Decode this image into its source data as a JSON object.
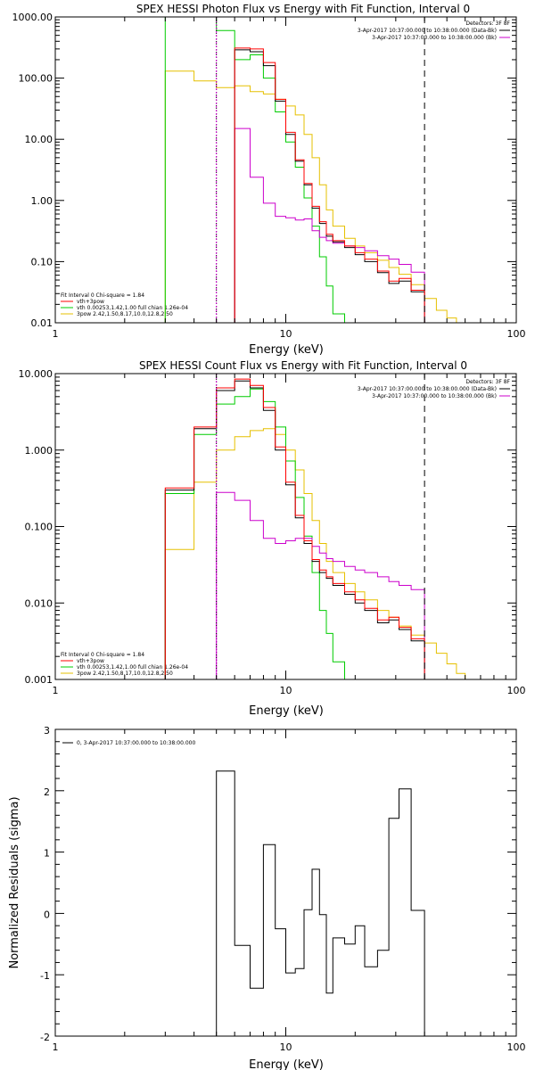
{
  "chart_data": [
    {
      "type": "line",
      "title": "SPEX HESSI Photon Flux vs Energy with Fit Function, Interval 0",
      "xlabel": "Energy (keV)",
      "ylabel": "",
      "xscale": "log",
      "yscale": "log",
      "xlim": [
        1,
        100
      ],
      "ylim": [
        0.01,
        1000
      ],
      "xticks": [
        "1",
        "10",
        "100"
      ],
      "yticks": [
        "1000.00",
        "100.00",
        "10.00",
        "1.00",
        "0.10",
        "0.01"
      ],
      "top_right_text": [
        "Detectors: 3F 8F",
        "3-Apr-2017 10:37:00.000 to 10:38:00.000 (Data-Bk)",
        "3-Apr-2017 10:37:00.000 to 10:38:00.000 (Bk)"
      ],
      "top_right_colors": [
        "#000000",
        "#cc00cc"
      ],
      "legend_position": "bottom-left",
      "fit_text": [
        "Fit Interval 0   Chi-square = 1.84",
        "vth+3pow",
        "vth 0.00253,1.42,1.00   full chian 1.26e-04",
        "3pow 2.42,1.50,8.17,10.0,12.8,2.50"
      ],
      "fit_colors": [
        "#ff0000",
        "#00cc00",
        "#e6c000"
      ],
      "edges": [
        3.0,
        4.0,
        5.0,
        6.0,
        7.0,
        8.0,
        9.0,
        10.0,
        11.0,
        12.0,
        13.0,
        14.0,
        15.0,
        16.0,
        18.0,
        20.0,
        22.0,
        25.0,
        28.0,
        31.0,
        35.0,
        40.0,
        45.0,
        50.0,
        55.0
      ],
      "vlines": [
        {
          "x": 5.0,
          "color": "#000000",
          "dash": "1,2"
        },
        {
          "x": 5.0,
          "color": "#cc00cc",
          "dash": "2,2"
        },
        {
          "x": 40.0,
          "color": "#000000",
          "dash": "7,5"
        }
      ],
      "series": [
        {
          "color": "#e6c000",
          "values": [
            130,
            90,
            70,
            75,
            60,
            55,
            45,
            35,
            25,
            12,
            5,
            1.8,
            0.7,
            0.38,
            0.24,
            0.18,
            0.14,
            0.105,
            0.08,
            0.062,
            0.042,
            0.025,
            0.016,
            0.012,
            null
          ]
        },
        {
          "color": "#00cc00",
          "values": [
            1000,
            1000,
            600,
            200,
            240,
            100,
            28,
            9,
            3.5,
            1.1,
            0.38,
            0.12,
            0.04,
            0.014,
            null,
            null,
            null,
            null,
            null,
            null,
            null,
            null,
            null,
            null,
            null
          ]
        },
        {
          "color": "#cc00cc",
          "values": [
            null,
            null,
            null,
            15,
            2.4,
            0.9,
            0.55,
            0.52,
            0.48,
            0.5,
            0.32,
            0.25,
            0.22,
            0.2,
            0.18,
            0.17,
            0.15,
            0.125,
            0.11,
            0.09,
            0.067,
            null,
            null,
            null,
            null
          ]
        },
        {
          "color": "#000000",
          "values": [
            null,
            null,
            null,
            290,
            270,
            160,
            42,
            12,
            4.4,
            1.8,
            0.75,
            0.42,
            0.26,
            0.21,
            0.17,
            0.13,
            0.1,
            0.066,
            0.044,
            0.048,
            0.032,
            null,
            null,
            null,
            null
          ]
        },
        {
          "color": "#ff0000",
          "values": [
            null,
            null,
            null,
            310,
            300,
            180,
            45,
            13,
            4.6,
            1.9,
            0.8,
            0.45,
            0.28,
            0.22,
            0.18,
            0.14,
            0.11,
            0.07,
            0.048,
            0.053,
            0.034,
            null,
            null,
            null,
            null
          ]
        }
      ]
    },
    {
      "type": "line",
      "title": "SPEX HESSI Count Flux vs Energy with Fit Function, Interval 0",
      "xlabel": "Energy (keV)",
      "ylabel": "",
      "xscale": "log",
      "yscale": "log",
      "xlim": [
        1,
        100
      ],
      "ylim": [
        0.001,
        10
      ],
      "xticks": [
        "1",
        "10",
        "100"
      ],
      "yticks": [
        "10.000",
        "1.000",
        "0.100",
        "0.010",
        "0.001"
      ],
      "top_right_text": [
        "Detectors: 3F 8F",
        "3-Apr-2017 10:37:00.000 to 10:38:00.000 (Data-Bk)",
        "3-Apr-2017 10:37:00.000 to 10:38:00.000 (Bk)"
      ],
      "top_right_colors": [
        "#000000",
        "#cc00cc"
      ],
      "legend_position": "bottom-left",
      "fit_text": [
        "Fit Interval 0   Chi-square = 1.84",
        "vth+3pow",
        "vth 0.00253,1.42,1.00   full chian 1.26e-04",
        "3pow 2.42,1.50,8.17,10.0,12.8,2.50"
      ],
      "fit_colors": [
        "#ff0000",
        "#00cc00",
        "#e6c000"
      ],
      "edges": [
        3.0,
        4.0,
        5.0,
        6.0,
        7.0,
        8.0,
        9.0,
        10.0,
        11.0,
        12.0,
        13.0,
        14.0,
        15.0,
        16.0,
        18.0,
        20.0,
        22.0,
        25.0,
        28.0,
        31.0,
        35.0,
        40.0,
        45.0,
        50.0,
        55.0,
        60.0,
        65.0
      ],
      "vlines": [
        {
          "x": 5.0,
          "color": "#000000",
          "dash": "1,2"
        },
        {
          "x": 5.0,
          "color": "#cc00cc",
          "dash": "2,2"
        },
        {
          "x": 40.0,
          "color": "#000000",
          "dash": "7,5"
        }
      ],
      "series": [
        {
          "color": "#e6c000",
          "values": [
            0.05,
            0.38,
            1.0,
            1.5,
            1.8,
            1.9,
            1.6,
            1.0,
            0.55,
            0.27,
            0.12,
            0.06,
            0.035,
            0.025,
            0.018,
            0.014,
            0.011,
            0.008,
            0.0065,
            0.005,
            0.0038,
            0.003,
            0.0022,
            0.0016,
            0.0012,
            0.0009
          ]
        },
        {
          "color": "#00cc00",
          "values": [
            0.27,
            1.6,
            4.0,
            5.0,
            6.3,
            4.3,
            2.0,
            0.72,
            0.24,
            0.075,
            0.025,
            0.008,
            0.004,
            0.0017,
            null,
            null,
            null,
            null,
            null,
            null,
            null,
            null,
            null,
            null,
            null,
            null
          ]
        },
        {
          "color": "#cc00cc",
          "values": [
            null,
            null,
            0.28,
            0.22,
            0.12,
            0.07,
            0.06,
            0.065,
            0.07,
            0.07,
            0.055,
            0.045,
            0.038,
            0.035,
            0.03,
            0.027,
            0.025,
            0.022,
            0.019,
            0.017,
            0.015,
            null,
            null,
            null,
            null,
            null
          ]
        },
        {
          "color": "#000000",
          "values": [
            0.3,
            1.9,
            6.0,
            8.0,
            6.5,
            3.3,
            1.0,
            0.35,
            0.13,
            0.06,
            0.035,
            0.025,
            0.021,
            0.017,
            0.013,
            0.01,
            0.008,
            0.0055,
            0.006,
            0.0045,
            0.0032,
            null,
            null,
            null,
            null,
            null
          ]
        },
        {
          "color": "#ff0000",
          "values": [
            0.32,
            2.0,
            6.5,
            8.5,
            7.0,
            3.6,
            1.1,
            0.38,
            0.14,
            0.065,
            0.037,
            0.027,
            0.022,
            0.018,
            0.014,
            0.011,
            0.0085,
            0.006,
            0.0065,
            0.0048,
            0.0034,
            null,
            null,
            null,
            null,
            null
          ]
        }
      ]
    },
    {
      "type": "line",
      "title": "",
      "xlabel": "Energy (keV)",
      "ylabel": "Normalized Residuals (sigma)",
      "xscale": "log",
      "yscale": "linear",
      "xlim": [
        1,
        100
      ],
      "ylim": [
        -2,
        3
      ],
      "xticks": [
        "1",
        "10",
        "100"
      ],
      "yticks": [
        "3",
        "2",
        "1",
        "0",
        "-1",
        "-2"
      ],
      "legend_position": "top-left",
      "legend": "0, 3-Apr-2017 10:37:00.000 to 10:38:00.000",
      "edges": [
        5.0,
        6.0,
        7.0,
        8.0,
        9.0,
        10.0,
        11.0,
        12.0,
        13.0,
        14.0,
        15.0,
        16.0,
        18.0,
        20.0,
        22.0,
        25.0,
        28.0,
        31.0,
        35.0,
        40.0
      ],
      "series": [
        {
          "color": "#000000",
          "values": [
            2.32,
            -0.52,
            -1.22,
            1.12,
            -0.25,
            -0.97,
            -0.9,
            0.06,
            0.72,
            -0.02,
            -1.3,
            -0.4,
            -0.5,
            -0.2,
            -0.87,
            -0.6,
            1.55,
            2.03,
            0.05
          ]
        }
      ]
    }
  ]
}
